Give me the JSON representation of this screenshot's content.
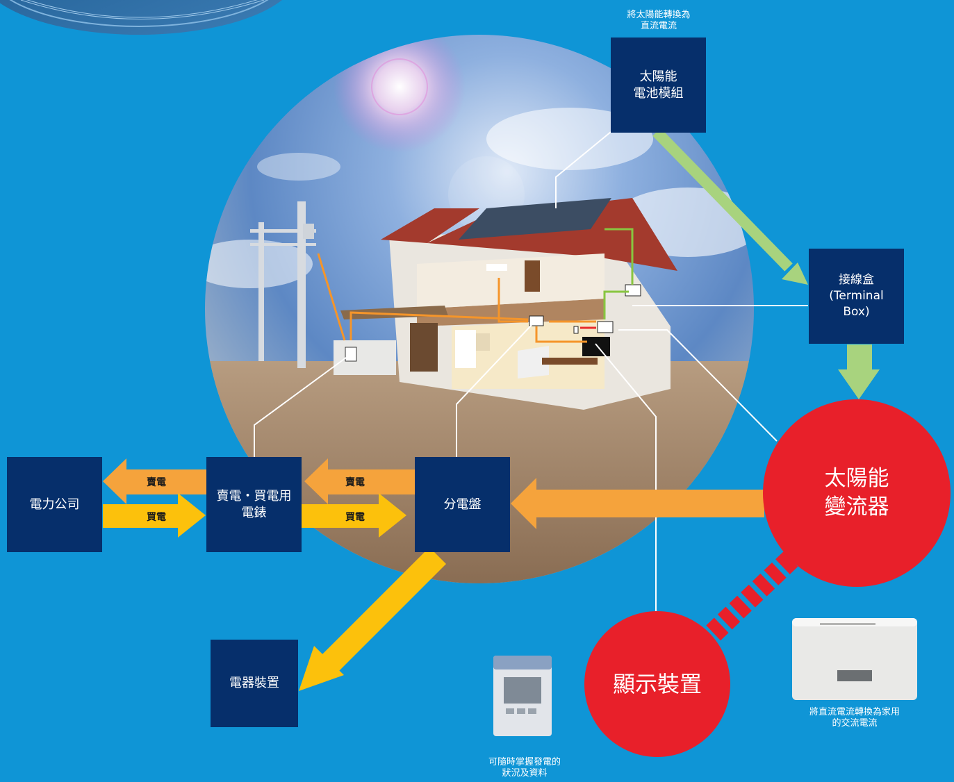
{
  "labels": {
    "solar_module": "太陽能\n電池模組",
    "solar_module_note": "將太陽能轉換為\n直流電流",
    "terminal_box": "接線盒\n(Terminal\nBox)",
    "inverter": "太陽能\n變流器",
    "inverter_note": "將直流電流轉換為家用\n的交流電流",
    "display": "顯示裝置",
    "display_note": "可隨時掌握發電的\n狀況及資料",
    "power_company": "電力公司",
    "meter": "賣電・買電用\n電錶",
    "distribution_panel": "分電盤",
    "appliances": "電器裝置",
    "sell_1": "賣電",
    "buy_1": "買電",
    "sell_2": "賣電",
    "buy_2": "買電"
  },
  "colors": {
    "background": "#0f95d6",
    "box": "#062f6b",
    "circle": "#e8202a",
    "arrow_orange": "#f5a33c",
    "arrow_yellow": "#fcc10c",
    "arrow_green": "#a8d37e",
    "connector": "#ffffff"
  },
  "icons": [
    "solar-panel-disc-icon",
    "house-cutaway-illustration",
    "display-device-photo",
    "inverter-device-photo"
  ]
}
